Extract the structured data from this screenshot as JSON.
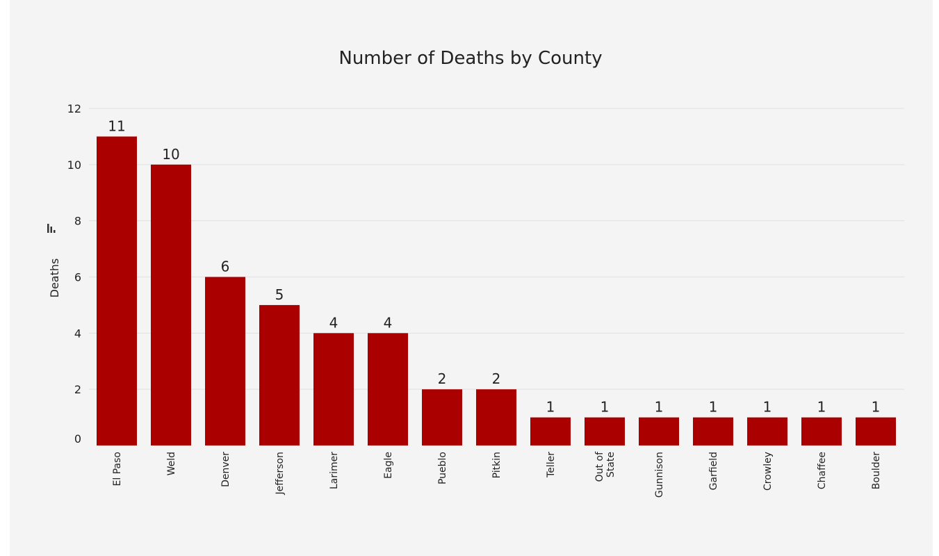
{
  "chart_data": {
    "type": "bar",
    "title": "Number of Deaths by County",
    "xlabel": "",
    "ylabel": "Deaths",
    "ylabel_icon": "bar-chart-icon",
    "ylim": [
      0,
      12
    ],
    "yticks": [
      0,
      2,
      4,
      6,
      8,
      10,
      12
    ],
    "grid": true,
    "bar_color": "#ab0000",
    "background_color": "#f4f4f4",
    "categories": [
      "El Paso",
      "Weld",
      "Denver",
      "Jefferson",
      "Larimer",
      "Eagle",
      "Pueblo",
      "Pitkin",
      "Teller",
      "Out of State",
      "Gunnison",
      "Garfield",
      "Crowley",
      "Chaffee",
      "Boulder"
    ],
    "values": [
      11,
      10,
      6,
      5,
      4,
      4,
      2,
      2,
      1,
      1,
      1,
      1,
      1,
      1,
      1
    ]
  }
}
